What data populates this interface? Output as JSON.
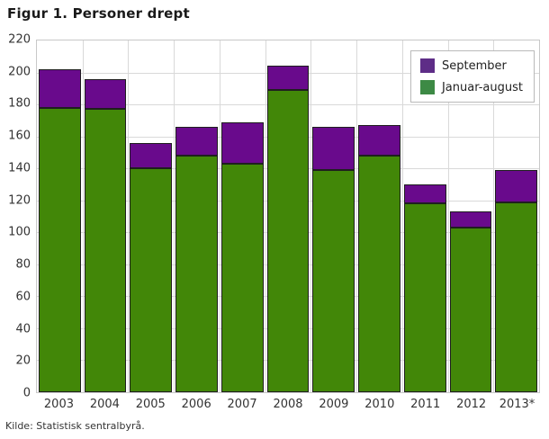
{
  "title": "Figur 1. Personer drept",
  "source": "Kilde: Statistisk sentralbyrå.",
  "colors": {
    "september_bar": "#690a8c",
    "september_legend": "#5e2d87",
    "januar_august_bar": "#428708",
    "januar_august_legend": "#3d8a45",
    "gridline": "#d9d9d9",
    "plot_border": "#c8c8c8",
    "bar_outline": "#1f1f1f"
  },
  "chart_data": {
    "type": "bar",
    "stacked": true,
    "title": "Figur 1. Personer drept",
    "xlabel": "",
    "ylabel": "",
    "categories": [
      "2003",
      "2004",
      "2005",
      "2006",
      "2007",
      "2008",
      "2009",
      "2010",
      "2011",
      "2012",
      "2013*"
    ],
    "series": [
      {
        "name": "September",
        "color": "#690a8c",
        "legend_color": "#5e2d87",
        "values": [
          24,
          19,
          16,
          18,
          26,
          15,
          27,
          19,
          12,
          10,
          20
        ]
      },
      {
        "name": "Januar-august",
        "color": "#428708",
        "legend_color": "#3d8a45",
        "values": [
          178,
          177,
          140,
          148,
          143,
          189,
          139,
          148,
          118,
          103,
          119
        ]
      }
    ],
    "totals": [
      202,
      196,
      156,
      166,
      169,
      204,
      166,
      167,
      130,
      113,
      139
    ],
    "ylim": [
      0,
      220
    ],
    "ytick_step": 20,
    "yticks": [
      0,
      20,
      40,
      60,
      80,
      100,
      120,
      140,
      160,
      180,
      200,
      220
    ],
    "grid": true,
    "legend_position": "top-right",
    "source": "Kilde: Statistisk sentralbyrå."
  }
}
